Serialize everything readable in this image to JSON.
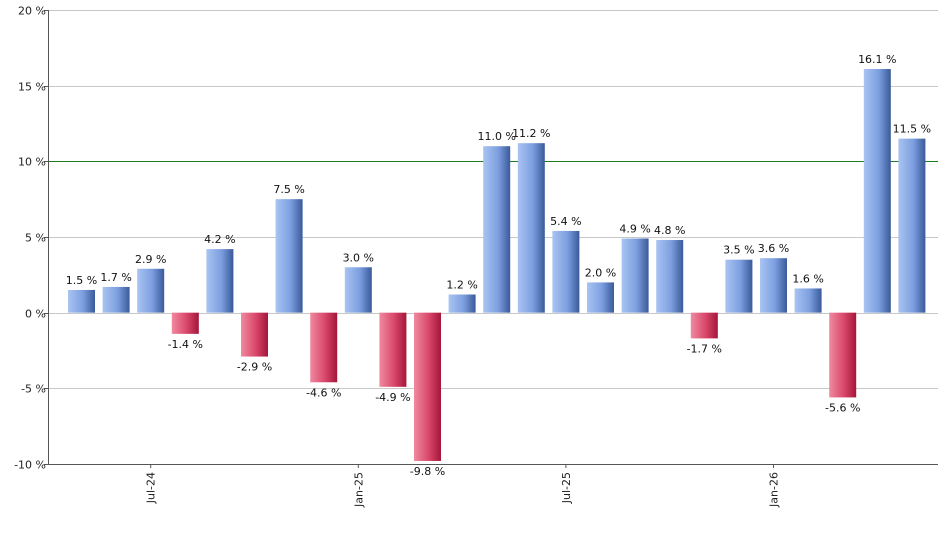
{
  "chart_data": {
    "type": "bar",
    "title": "",
    "xlabel": "",
    "ylabel": "",
    "ylim": [
      -10,
      20
    ],
    "y_ticks": [
      -10,
      -5,
      0,
      5,
      10,
      15,
      20
    ],
    "y_tick_labels": [
      "-10 %",
      "-5 %",
      "0 %",
      "5 %",
      "10 %",
      "15 %",
      "20 %"
    ],
    "reference_line": 10,
    "grid": true,
    "value_suffix": " %",
    "x_tick_labels": [
      {
        "index": 2,
        "label": "Jul-24"
      },
      {
        "index": 8,
        "label": "Jan-25"
      },
      {
        "index": 14,
        "label": "Jul-25"
      },
      {
        "index": 20,
        "label": "Jan-26"
      }
    ],
    "values": [
      1.5,
      1.7,
      2.9,
      -1.4,
      4.2,
      -2.9,
      7.5,
      -4.6,
      3.0,
      -4.9,
      -9.8,
      1.2,
      11.0,
      11.2,
      5.4,
      2.0,
      4.9,
      4.8,
      -1.7,
      3.5,
      3.6,
      1.6,
      -5.6,
      16.1,
      11.5
    ],
    "colors": {
      "positive_light": "#a9c4f2",
      "positive_dark": "#3a5a99",
      "negative_light": "#f08aa0",
      "negative_dark": "#a3163a",
      "reference_line": "#1e7a1e",
      "grid": "#c8c8c8",
      "axis": "#555555"
    }
  }
}
